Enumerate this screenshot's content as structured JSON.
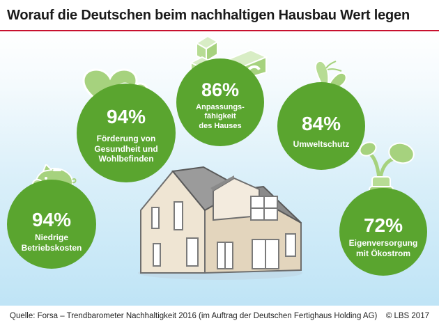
{
  "title": "Worauf die Deutschen beim nachhaltigen Hausbau Wert legen",
  "items": [
    {
      "percent": "94%",
      "label": "Förderung von\nGesundheit und\nWohlbefinden",
      "icon": "hearts-icon"
    },
    {
      "percent": "86%",
      "label": "Anpassungs-\nfähigkeit\ndes Hauses",
      "icon": "building-blocks-icon"
    },
    {
      "percent": "84%",
      "label": "Umweltschutz",
      "icon": "butterfly-icon"
    },
    {
      "percent": "94%",
      "label": "Niedrige\nBetriebskosten",
      "icon": "piggy-bank-icon"
    },
    {
      "percent": "72%",
      "label": "Eigenversorgung\nmit Ökostrom",
      "icon": "plant-plug-icon"
    }
  ],
  "footer": {
    "source": "Quelle:  Forsa – Trendbarometer Nachhaltigkeit 2016 (im Auftrag der Deutschen Fertighaus Holding AG)",
    "copyright": "© LBS 2017"
  },
  "colors": {
    "circle": "#5aa52f",
    "icon": "#a6d27e",
    "accent": "#c8102e"
  }
}
